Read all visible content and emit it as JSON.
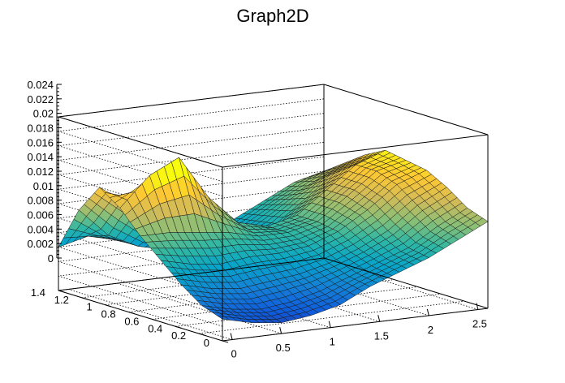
{
  "chart_data": {
    "type": "surface",
    "title": "Graph2D",
    "xlabel": "",
    "ylabel": "",
    "zlabel": "",
    "xlim": [
      -0.1,
      2.6
    ],
    "ylim": [
      0,
      1.4
    ],
    "zlim": [
      0,
      0.024
    ],
    "x_ticks": [
      "0",
      "0.5",
      "1",
      "1.5",
      "2",
      "2.5"
    ],
    "y_ticks": [
      "0",
      "0.2",
      "0.4",
      "0.6",
      "0.8",
      "1",
      "1.2",
      "1.4"
    ],
    "z_ticks": [
      "0",
      "0.002",
      "0.004",
      "0.006",
      "0.008",
      "0.01",
      "0.012",
      "0.014",
      "0.016",
      "0.018",
      "0.02",
      "0.022",
      "0.024"
    ],
    "grid": true,
    "colormap": [
      "#352a87",
      "#0f5cdd",
      "#1481d6",
      "#06a4ca",
      "#2eb7a4",
      "#87bf77",
      "#d1bb59",
      "#fec832",
      "#f9fb0e"
    ],
    "surface_x": [
      -0.1,
      0.2,
      0.5,
      0.8,
      1.1,
      1.4,
      1.7,
      2.0,
      2.3,
      2.6
    ],
    "surface_y": [
      0,
      0.175,
      0.35,
      0.525,
      0.7,
      0.875,
      1.05,
      1.225,
      1.4
    ],
    "surface_z": [
      [
        0.003,
        0.002,
        0.0015,
        0.002,
        0.003,
        0.005,
        0.0065,
        0.008,
        0.01,
        0.012
      ],
      [
        0.004,
        0.003,
        0.0025,
        0.003,
        0.004,
        0.0055,
        0.007,
        0.0085,
        0.011,
        0.013
      ],
      [
        0.006,
        0.005,
        0.0045,
        0.005,
        0.0055,
        0.0065,
        0.008,
        0.01,
        0.013,
        0.015
      ],
      [
        0.0085,
        0.0075,
        0.007,
        0.0075,
        0.0075,
        0.008,
        0.0095,
        0.012,
        0.015,
        0.0165
      ],
      [
        0.011,
        0.011,
        0.0105,
        0.01,
        0.009,
        0.009,
        0.01,
        0.013,
        0.016,
        0.017
      ],
      [
        0.014,
        0.018,
        0.02,
        0.014,
        0.01,
        0.009,
        0.01,
        0.013,
        0.016,
        0.0175
      ],
      [
        0.016,
        0.013,
        0.009,
        0.006,
        0.0055,
        0.006,
        0.008,
        0.011,
        0.014,
        0.016
      ],
      [
        0.012,
        0.008,
        0.006,
        0.005,
        0.005,
        0.0055,
        0.0075,
        0.01,
        0.012,
        0.014
      ],
      [
        0.006,
        0.007,
        0.006,
        0.0045,
        0.0045,
        0.005,
        0.007,
        0.009,
        0.011,
        0.012
      ]
    ]
  }
}
